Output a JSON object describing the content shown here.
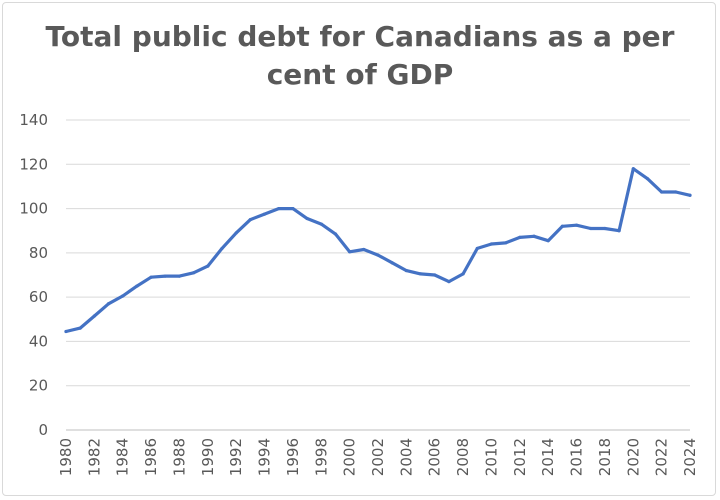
{
  "chart_data": {
    "type": "line",
    "title_lines": [
      "Total public debt for Canadians as a per",
      "cent of GDP"
    ],
    "xlabel": "",
    "ylabel": "",
    "ylim": [
      0,
      140
    ],
    "yticks": [
      0,
      20,
      40,
      60,
      80,
      100,
      120,
      140
    ],
    "x": [
      1980,
      1981,
      1982,
      1983,
      1984,
      1985,
      1986,
      1987,
      1988,
      1989,
      1990,
      1991,
      1992,
      1993,
      1994,
      1995,
      1996,
      1997,
      1998,
      1999,
      2000,
      2001,
      2002,
      2003,
      2004,
      2005,
      2006,
      2007,
      2008,
      2009,
      2010,
      2011,
      2012,
      2013,
      2014,
      2015,
      2016,
      2017,
      2018,
      2019,
      2020,
      2021,
      2022,
      2023,
      2024
    ],
    "xtick_labels": [
      "1980",
      "1982",
      "1984",
      "1986",
      "1988",
      "1990",
      "1992",
      "1994",
      "1996",
      "1998",
      "2000",
      "2002",
      "2004",
      "2006",
      "2008",
      "2010",
      "2012",
      "2014",
      "2016",
      "2018",
      "2020",
      "2022",
      "2024"
    ],
    "series": [
      {
        "color": "#4472c4",
        "values": [
          44.5,
          46,
          51.5,
          57,
          60.5,
          65,
          69,
          69.5,
          69.5,
          71,
          74,
          82,
          89,
          95,
          97.5,
          100,
          100,
          95.5,
          93,
          88.5,
          80.5,
          81.5,
          79,
          75.5,
          72,
          70.5,
          70,
          67,
          70.5,
          82,
          84,
          84.5,
          87,
          87.5,
          85.5,
          92,
          92.5,
          91,
          91,
          90,
          118,
          113.5,
          107.5,
          107.5,
          106
        ]
      }
    ],
    "grid": true,
    "legend": "none"
  }
}
